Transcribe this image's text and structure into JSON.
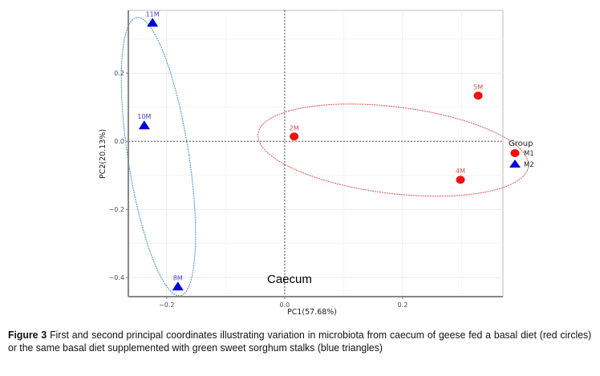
{
  "chart_data": {
    "type": "scatter",
    "title": "",
    "annotation": "Caecum",
    "xlabel": "PC1(57.68%)",
    "ylabel": "PC2(20.13%)",
    "xlim": [
      -0.265,
      0.37
    ],
    "ylim": [
      -0.456,
      0.384
    ],
    "xticks": [
      -0.2,
      0.0,
      0.2
    ],
    "xtick_labels": [
      "-0.2",
      "0.0",
      "0.2"
    ],
    "yticks": [
      0.2,
      0.0,
      -0.2,
      -0.4
    ],
    "ytick_labels": [
      "0.2",
      "0.0",
      "-0.2",
      "-0.4"
    ],
    "grid": true,
    "reference_lines": {
      "x": 0.0,
      "y": 0.0,
      "style": "dashed"
    },
    "legend": {
      "title": "Group",
      "placement": "right",
      "entries": [
        {
          "name": "M1",
          "shape": "circle",
          "color": "#ee1111"
        },
        {
          "name": "M2",
          "shape": "triangle",
          "color": "#0000e0"
        }
      ]
    },
    "series": [
      {
        "name": "M1",
        "shape": "circle",
        "color": "#ee1111",
        "ellipse_color": "#e05050",
        "points": [
          {
            "label": "2M",
            "x": 0.016,
            "y": 0.014
          },
          {
            "label": "5M",
            "x": 0.328,
            "y": 0.134
          },
          {
            "label": "4M",
            "x": 0.298,
            "y": -0.113
          }
        ],
        "ellipse": {
          "cx": 0.184,
          "cy": -0.026,
          "rx": 0.235,
          "ry": 0.125,
          "angle_deg": -15
        }
      },
      {
        "name": "M2",
        "shape": "triangle",
        "color": "#0000e0",
        "ellipse_color": "#3a8fd0",
        "points": [
          {
            "label": "11M",
            "x": -0.224,
            "y": 0.348
          },
          {
            "label": "10M",
            "x": -0.238,
            "y": 0.047
          },
          {
            "label": "8M",
            "x": -0.181,
            "y": -0.426
          }
        ],
        "ellipse": {
          "cx": -0.214,
          "cy": -0.045,
          "rx": 0.052,
          "ry": 0.41,
          "angle_deg": 5
        }
      }
    ]
  },
  "caption": {
    "label": "Figure 3",
    "text": " First and second principal coordinates illustrating variation in microbiota from caecum of geese fed a basal diet (red circles) or the same basal diet supplemented with green sweet sorghum stalks (blue triangles)"
  }
}
